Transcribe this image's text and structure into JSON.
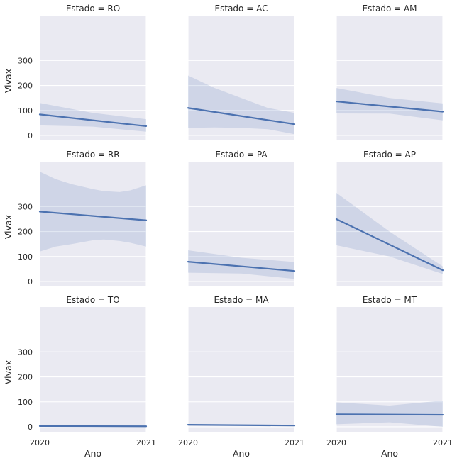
{
  "chart_data": {
    "type": "line",
    "facet_variable": "Estado",
    "facet_title_sep": " = ",
    "xlabel": "Ano",
    "ylabel": "Vivax",
    "x": [
      2020,
      2021
    ],
    "xticks": [
      2020,
      2021
    ],
    "xlim": [
      2020,
      2021
    ],
    "yticks": [
      0,
      100,
      200,
      300
    ],
    "ylim": [
      -20,
      480
    ],
    "grid": true,
    "colors": {
      "line": "#4c72b0",
      "panel_background": "#eaeaf2",
      "grid": "#ffffff"
    },
    "facets": [
      {
        "name": "RO",
        "line": [
          84,
          37
        ],
        "ci": {
          "x": [
            2020,
            2020.5,
            2021
          ],
          "lower": [
            40,
            35,
            15
          ],
          "upper": [
            130,
            90,
            65
          ]
        }
      },
      {
        "name": "AC",
        "line": [
          110,
          45
        ],
        "ci": {
          "x": [
            2020,
            2020.25,
            2020.5,
            2020.75,
            2021
          ],
          "lower": [
            30,
            32,
            30,
            25,
            5
          ],
          "upper": [
            240,
            190,
            150,
            110,
            90
          ]
        }
      },
      {
        "name": "AM",
        "line": [
          136,
          95
        ],
        "ci": {
          "x": [
            2020,
            2020.5,
            2021
          ],
          "lower": [
            88,
            87,
            60
          ],
          "upper": [
            190,
            150,
            128
          ]
        }
      },
      {
        "name": "RR",
        "line": [
          280,
          245
        ],
        "ci": {
          "x": [
            2020,
            2020.15,
            2020.3,
            2020.5,
            2020.6,
            2020.75,
            2020.85,
            2021
          ],
          "lower": [
            120,
            140,
            150,
            165,
            168,
            162,
            155,
            140
          ],
          "upper": [
            440,
            410,
            390,
            370,
            362,
            358,
            365,
            385
          ]
        }
      },
      {
        "name": "PA",
        "line": [
          79,
          42
        ],
        "ci": {
          "x": [
            2020,
            2020.5,
            2021
          ],
          "lower": [
            35,
            32,
            10
          ],
          "upper": [
            125,
            95,
            78
          ]
        }
      },
      {
        "name": "AP",
        "line": [
          250,
          45
        ],
        "ci": {
          "x": [
            2020,
            2020.5,
            2021
          ],
          "lower": [
            145,
            100,
            30
          ],
          "upper": [
            355,
            200,
            60
          ]
        }
      },
      {
        "name": "TO",
        "line": [
          3,
          2
        ],
        "ci": {
          "x": [
            2020,
            2021
          ],
          "lower": [
            1,
            0
          ],
          "upper": [
            5,
            4
          ]
        }
      },
      {
        "name": "MA",
        "line": [
          8,
          5
        ],
        "ci": {
          "x": [
            2020,
            2021
          ],
          "lower": [
            5,
            3
          ],
          "upper": [
            11,
            7
          ]
        }
      },
      {
        "name": "MT",
        "line": [
          50,
          48
        ],
        "ci": {
          "x": [
            2020,
            2020.5,
            2021
          ],
          "lower": [
            10,
            18,
            0
          ],
          "upper": [
            98,
            85,
            105
          ]
        }
      }
    ]
  }
}
